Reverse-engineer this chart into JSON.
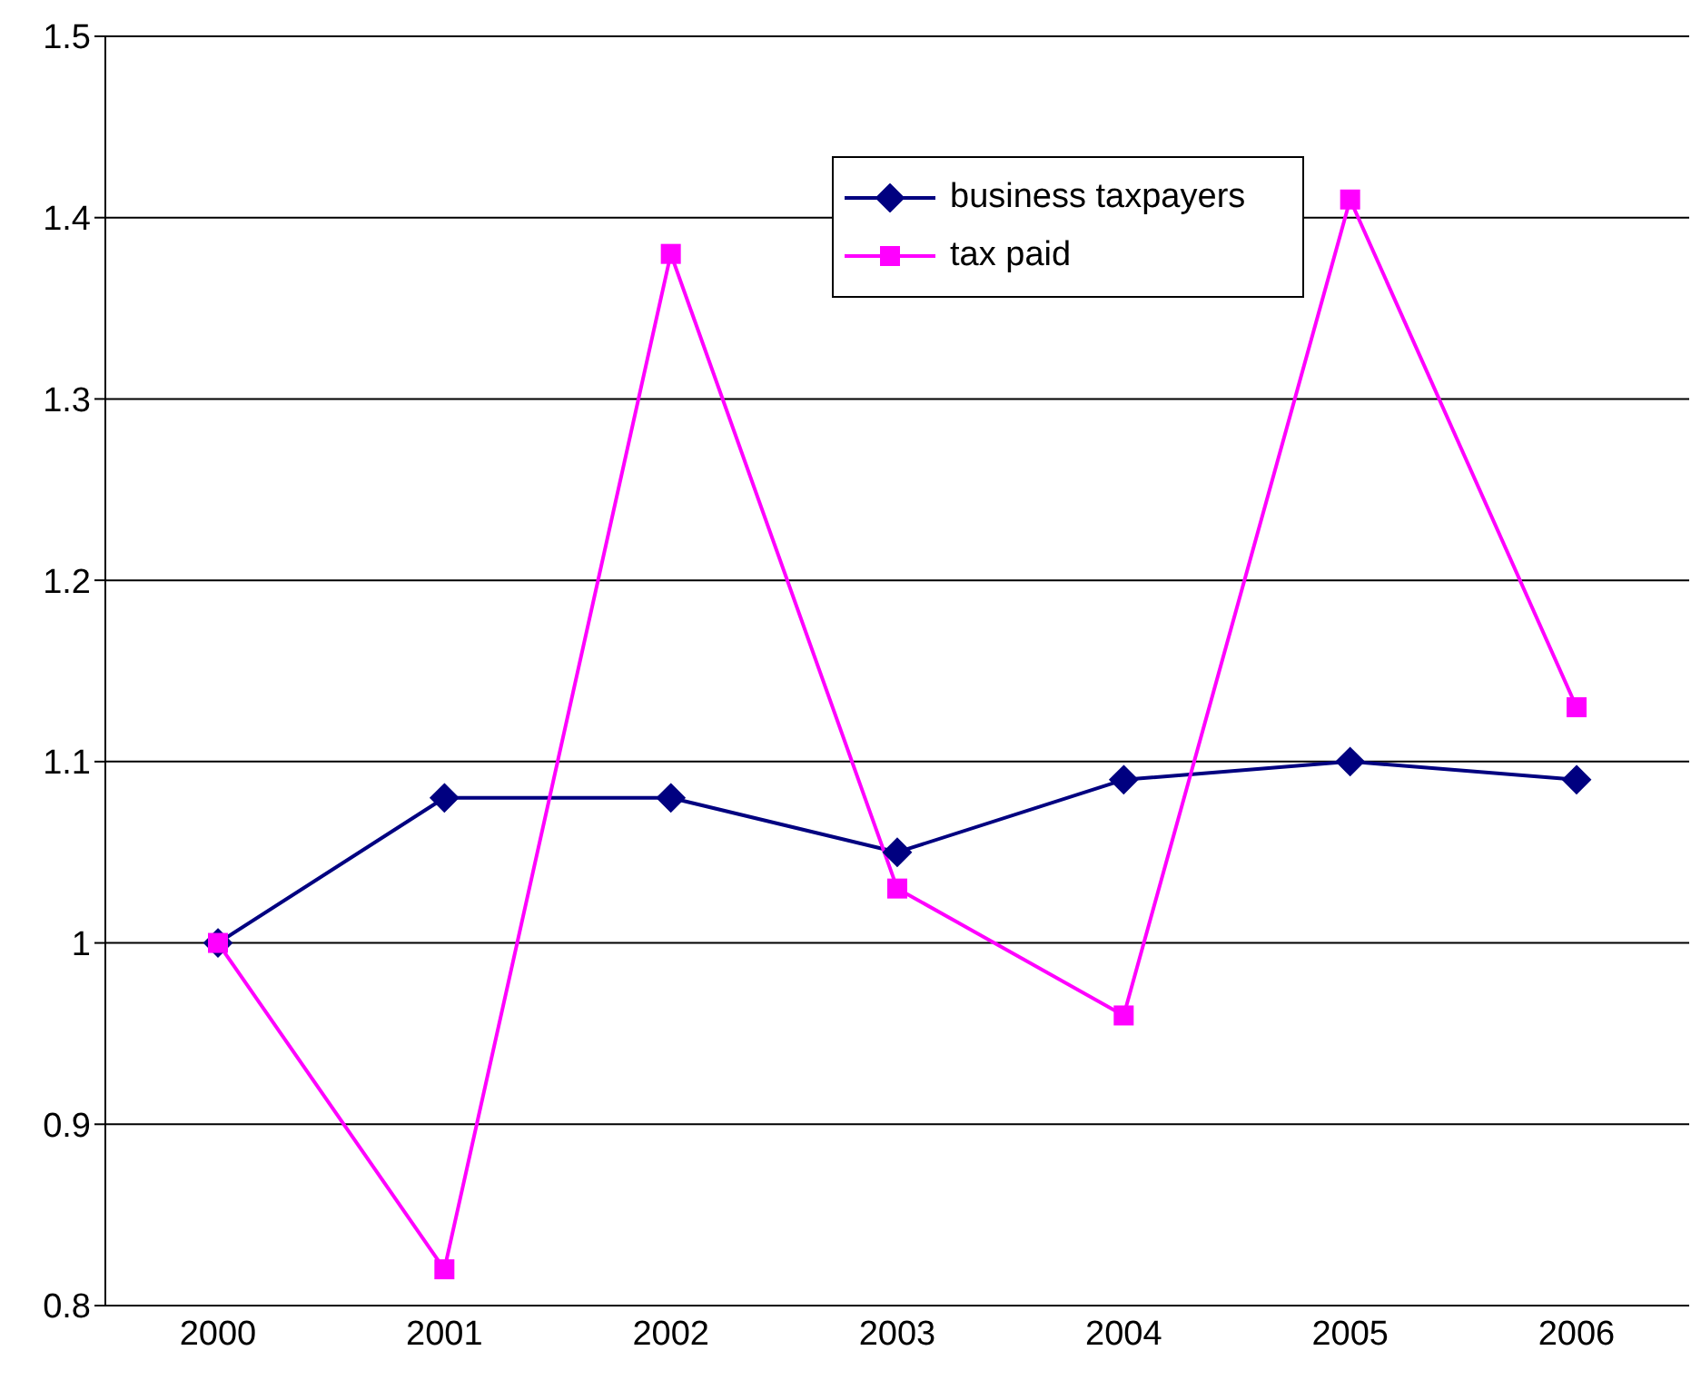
{
  "chart_data": {
    "type": "line",
    "categories": [
      "2000",
      "2001",
      "2002",
      "2003",
      "2004",
      "2005",
      "2006"
    ],
    "series": [
      {
        "name": "business taxpayers",
        "color": "#000080",
        "marker": "diamond",
        "values": [
          1.0,
          1.08,
          1.08,
          1.05,
          1.09,
          1.1,
          1.09
        ]
      },
      {
        "name": "tax paid",
        "color": "#ff00ff",
        "marker": "square",
        "values": [
          1.0,
          0.82,
          1.38,
          1.03,
          0.96,
          1.41,
          1.13
        ]
      }
    ],
    "ylim": [
      0.8,
      1.5
    ],
    "yticks": [
      0.8,
      0.9,
      1,
      1.1,
      1.2,
      1.3,
      1.4,
      1.5
    ],
    "grid": "y",
    "legend": "top",
    "line_style": "solid"
  }
}
